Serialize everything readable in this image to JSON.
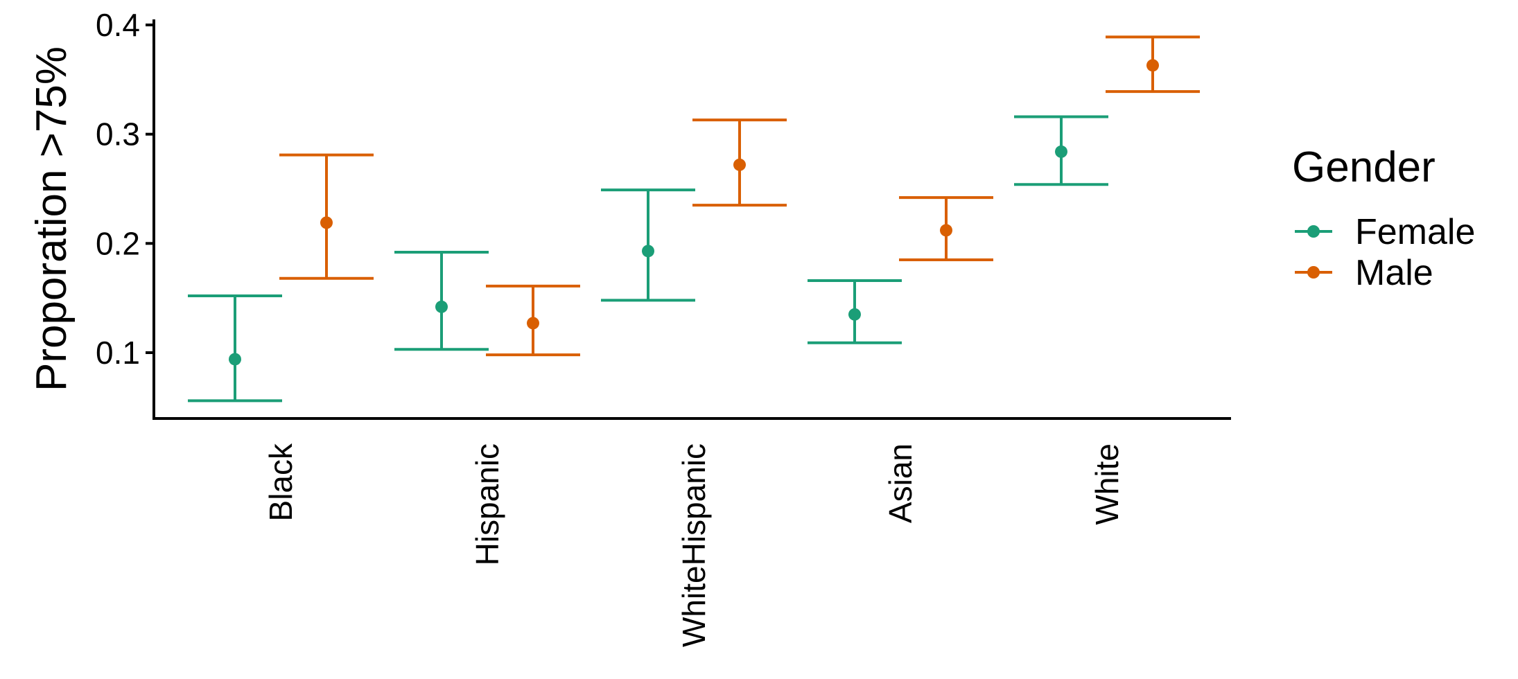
{
  "chart_data": {
    "type": "errorbar",
    "title": "",
    "xlabel": "",
    "ylabel": "Proporation >75%",
    "ylim": [
      0.04,
      0.405
    ],
    "yticks": [
      0.1,
      0.2,
      0.3,
      0.4
    ],
    "ytick_labels": [
      "0.1",
      "0.2",
      "0.3",
      "0.4"
    ],
    "categories": [
      "Black",
      "Hispanic",
      "WhiteHispanic",
      "Asian",
      "White"
    ],
    "grid": false,
    "legend": {
      "title": "Gender",
      "position": "right"
    },
    "series": [
      {
        "name": "Female",
        "color": "#1b9e77",
        "values": [
          0.094,
          0.142,
          0.193,
          0.135,
          0.284
        ],
        "lower": [
          0.056,
          0.103,
          0.148,
          0.109,
          0.254
        ],
        "upper": [
          0.152,
          0.192,
          0.249,
          0.166,
          0.316
        ]
      },
      {
        "name": "Male",
        "color": "#d95f02",
        "values": [
          0.219,
          0.127,
          0.272,
          0.212,
          0.363
        ],
        "lower": [
          0.168,
          0.098,
          0.235,
          0.185,
          0.339
        ],
        "upper": [
          0.281,
          0.161,
          0.313,
          0.242,
          0.389
        ]
      }
    ]
  }
}
